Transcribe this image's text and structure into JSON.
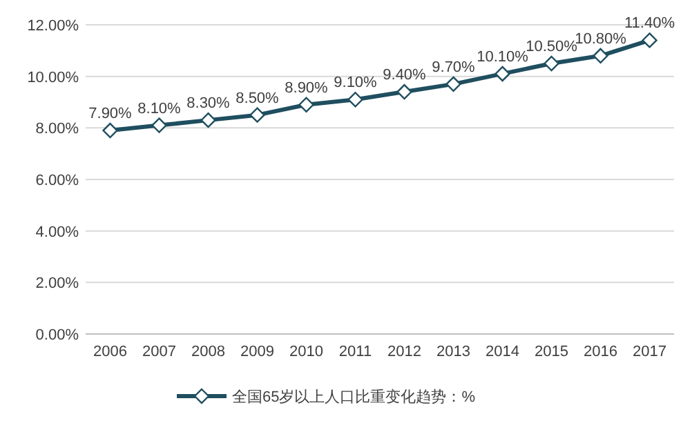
{
  "chart_data": {
    "type": "line",
    "categories": [
      "2006",
      "2007",
      "2008",
      "2009",
      "2010",
      "2011",
      "2012",
      "2013",
      "2014",
      "2015",
      "2016",
      "2017"
    ],
    "series": [
      {
        "name": "全国65岁以上人口比重变化趋势：%",
        "color": "#1f4e5f",
        "values": [
          7.9,
          8.1,
          8.3,
          8.5,
          8.9,
          9.1,
          9.4,
          9.7,
          10.1,
          10.5,
          10.8,
          11.4
        ],
        "value_labels": [
          "7.90%",
          "8.10%",
          "8.30%",
          "8.50%",
          "8.90%",
          "9.10%",
          "9.40%",
          "9.70%",
          "10.10%",
          "10.50%",
          "10.80%",
          "11.40%"
        ]
      }
    ],
    "ylim": [
      0,
      12
    ],
    "yticks": [
      {
        "value": 0,
        "label": "0.00%"
      },
      {
        "value": 2,
        "label": "2.00%"
      },
      {
        "value": 4,
        "label": "4.00%"
      },
      {
        "value": 6,
        "label": "6.00%"
      },
      {
        "value": 8,
        "label": "8.00%"
      },
      {
        "value": 10,
        "label": "10.00%"
      },
      {
        "value": 12,
        "label": "12.00%"
      }
    ],
    "grid": "y",
    "legend": "bottom",
    "marker": "diamond",
    "line_style": "solid"
  }
}
